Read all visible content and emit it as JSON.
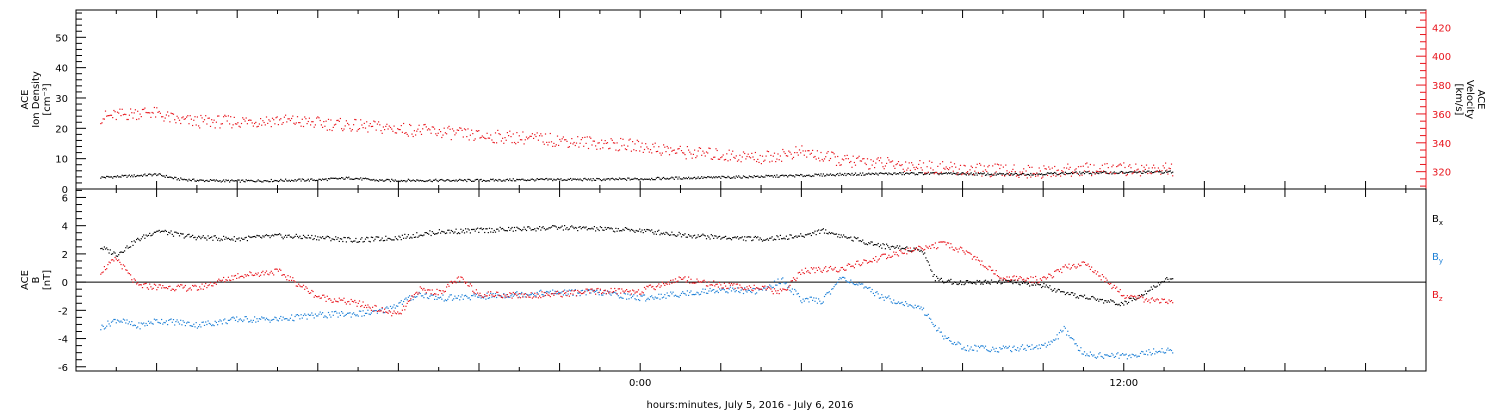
{
  "caption": "hours:minutes, July  5, 2016 - July  6, 2016",
  "colors": {
    "black": "#000000",
    "red": "#e8141c",
    "blue": "#1c7fd6"
  },
  "chart_data": [
    {
      "type": "scatter",
      "panel": "plasma",
      "ylabel_lines": [
        "ACE",
        "Ion Density",
        "[cm⁻³]"
      ],
      "y2label_lines": [
        "ACE",
        "Velocity",
        "[km/s]"
      ],
      "xlim_hours": [
        -14,
        19.5
      ],
      "ylim": [
        0,
        59
      ],
      "y2lim": [
        308,
        432
      ],
      "y_ticks": [
        "0",
        "10",
        "20",
        "30",
        "40",
        "50"
      ],
      "y2_ticks": [
        "320",
        "340",
        "360",
        "380",
        "400",
        "420"
      ],
      "series": [
        {
          "name": "",
          "axis": "left",
          "color": "#000000",
          "x_hours": [
            -13.4,
            -12.6,
            -12.0,
            -11.5,
            -11.0,
            -10.0,
            -9.0,
            -8.0,
            -7.2,
            -6.5,
            -5.0,
            -4.0,
            -3.0,
            -2.0,
            -1.0,
            0.0,
            1.0,
            2.0,
            3.0,
            4.0,
            5.0,
            6.0,
            7.0,
            8.0,
            9.0,
            10.0,
            11.0,
            12.0,
            13.0
          ],
          "values": [
            4.0,
            4.5,
            5.0,
            3.5,
            3.0,
            2.8,
            3.0,
            3.2,
            3.8,
            3.0,
            3.0,
            3.0,
            3.2,
            3.3,
            3.3,
            3.5,
            3.8,
            4.0,
            4.3,
            4.6,
            5.0,
            5.2,
            5.3,
            5.2,
            5.0,
            5.2,
            5.5,
            5.6,
            5.8
          ]
        },
        {
          "name": "",
          "axis": "right",
          "color": "#e8141c",
          "x_hours": [
            -13.4,
            -12.8,
            -12.2,
            -11.5,
            -11.0,
            -10.0,
            -9.0,
            -8.0,
            -7.0,
            -6.0,
            -5.0,
            -4.0,
            -3.0,
            -2.0,
            -1.0,
            0.0,
            1.0,
            2.0,
            3.0,
            4.0,
            5.0,
            6.0,
            7.0,
            8.0,
            9.0,
            10.0,
            11.0,
            12.0,
            13.0
          ],
          "values": [
            358,
            360,
            362,
            356,
            355,
            355,
            356,
            354,
            352,
            350,
            348,
            345,
            344,
            342,
            340,
            338,
            334,
            332,
            330,
            334,
            328,
            326,
            324,
            322,
            321,
            320,
            322,
            322,
            322
          ]
        }
      ]
    },
    {
      "type": "scatter",
      "panel": "magnetic-field",
      "ylabel_lines": [
        "ACE",
        "B",
        "[nT]"
      ],
      "xlim_hours": [
        -14,
        19.5
      ],
      "ylim": [
        -6.3,
        6.6
      ],
      "y_ticks": [
        "-6",
        "-4",
        "-2",
        "0",
        "2",
        "4",
        "6"
      ],
      "x_tick_labels": [
        {
          "hour": 0,
          "label": "0:00"
        },
        {
          "hour": 12,
          "label": "12:00"
        }
      ],
      "zero_line": true,
      "series": [
        {
          "name": "B",
          "sub": "x",
          "color": "#000000",
          "x_hours": [
            -13.4,
            -13.0,
            -12.5,
            -12.0,
            -11.5,
            -11.0,
            -10.0,
            -9.0,
            -8.0,
            -7.0,
            -6.0,
            -5.0,
            -4.0,
            -3.0,
            -2.0,
            -1.0,
            0.0,
            1.0,
            2.0,
            3.0,
            4.0,
            4.5,
            5.0,
            6.0,
            7.0,
            7.3,
            7.6,
            8.0,
            9.0,
            10.0,
            10.5,
            11.0,
            11.5,
            12.0,
            12.5,
            13.0
          ],
          "values": [
            2.5,
            2.0,
            3.0,
            3.7,
            3.4,
            3.2,
            3.1,
            3.3,
            3.2,
            3.0,
            3.2,
            3.6,
            3.7,
            3.8,
            3.9,
            3.8,
            3.7,
            3.4,
            3.2,
            3.1,
            3.3,
            3.7,
            3.3,
            2.6,
            2.3,
            0.3,
            0.1,
            0.0,
            0.1,
            -0.2,
            -0.8,
            -1.0,
            -1.3,
            -1.5,
            -0.7,
            0.2
          ]
        },
        {
          "name": "B",
          "sub": "y",
          "color": "#1c7fd6",
          "x_hours": [
            -13.4,
            -13.0,
            -12.5,
            -12.0,
            -11.5,
            -11.0,
            -10.0,
            -9.0,
            -8.0,
            -7.0,
            -6.5,
            -6.0,
            -5.5,
            -5.0,
            -4.0,
            -3.0,
            -2.0,
            -1.0,
            0.0,
            1.0,
            2.0,
            3.0,
            3.5,
            4.0,
            4.5,
            5.0,
            6.0,
            7.0,
            7.5,
            8.0,
            9.0,
            10.0,
            10.3,
            10.5,
            11.0,
            12.0,
            13.0
          ],
          "values": [
            -3.2,
            -2.6,
            -3.1,
            -2.7,
            -2.8,
            -3.0,
            -2.6,
            -2.6,
            -2.3,
            -2.2,
            -2.1,
            -1.5,
            -0.8,
            -1.1,
            -1.0,
            -0.8,
            -0.7,
            -0.7,
            -1.1,
            -0.8,
            -0.5,
            -0.6,
            0.2,
            -1.2,
            -1.3,
            0.4,
            -1.0,
            -1.9,
            -3.8,
            -4.6,
            -4.7,
            -4.5,
            -4.0,
            -3.3,
            -5.1,
            -5.2,
            -4.8
          ]
        },
        {
          "name": "B",
          "sub": "z",
          "color": "#e8141c",
          "x_hours": [
            -13.4,
            -13.0,
            -12.5,
            -12.0,
            -11.0,
            -10.0,
            -9.0,
            -8.0,
            -7.0,
            -6.0,
            -5.5,
            -5.0,
            -4.5,
            -4.0,
            -3.0,
            -2.0,
            -1.0,
            0.0,
            1.0,
            2.0,
            3.0,
            3.5,
            4.0,
            5.0,
            6.0,
            7.0,
            7.5,
            8.0,
            9.0,
            10.0,
            10.5,
            11.0,
            12.0,
            13.0
          ],
          "values": [
            0.8,
            1.7,
            -0.2,
            -0.3,
            -0.4,
            0.5,
            0.8,
            -1.0,
            -1.5,
            -2.3,
            -0.5,
            -0.7,
            0.3,
            -0.8,
            -0.9,
            -0.8,
            -0.6,
            -0.6,
            0.3,
            -0.2,
            -0.4,
            -0.7,
            0.8,
            1.0,
            1.8,
            2.5,
            2.7,
            2.3,
            0.3,
            0.2,
            1.0,
            1.4,
            -0.9,
            -1.4
          ]
        }
      ]
    }
  ]
}
